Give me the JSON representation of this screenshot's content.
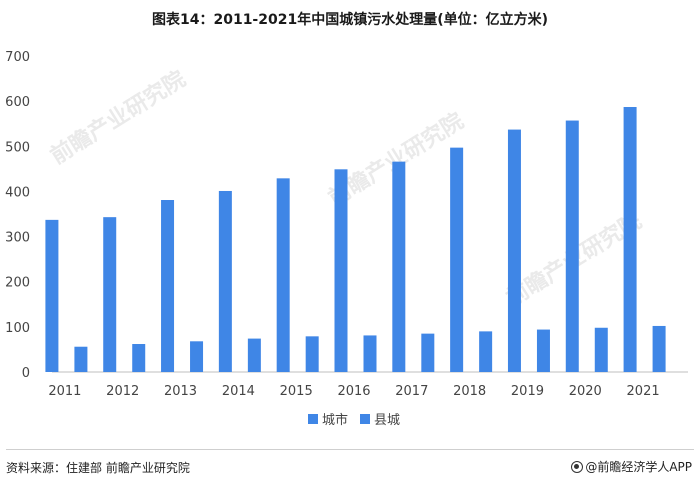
{
  "title": "图表14：2011-2021年中国城镇污水处理量(单位：亿立方米)",
  "chart_data": {
    "type": "bar",
    "title": "图表14：2011-2021年中国城镇污水处理量(单位：亿立方米)",
    "categories": [
      "2011",
      "2012",
      "2013",
      "2014",
      "2015",
      "2016",
      "2017",
      "2018",
      "2019",
      "2020",
      "2021"
    ],
    "series": [
      {
        "name": "城市",
        "values": [
          337,
          343,
          381,
          401,
          429,
          449,
          466,
          497,
          537,
          557,
          587
        ],
        "color": "#3f86e6"
      },
      {
        "name": "县城",
        "values": [
          56,
          62,
          68,
          74,
          79,
          81,
          85,
          90,
          94,
          98,
          102
        ],
        "color": "#3f86e6"
      }
    ],
    "ylim": [
      0,
      700
    ],
    "yticks": [
      0,
      100,
      200,
      300,
      400,
      500,
      600,
      700
    ],
    "xlabel": "",
    "ylabel": "",
    "grid": false,
    "legend_position": "bottom"
  },
  "watermark_text": "前瞻产业研究院",
  "footer": {
    "source": "资料来源：住建部 前瞻产业研究院",
    "brand": "@前瞻经济学人APP"
  }
}
